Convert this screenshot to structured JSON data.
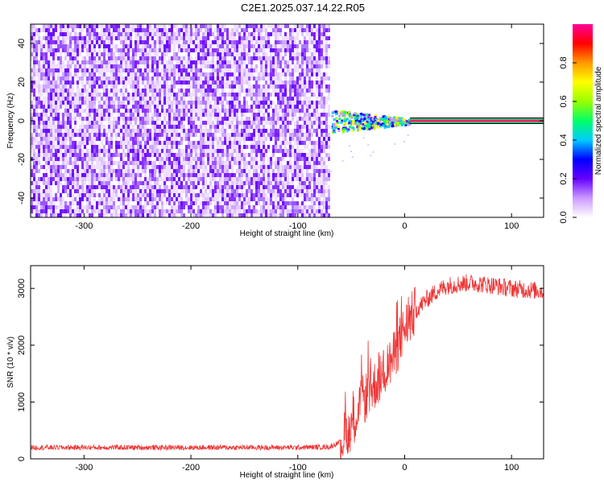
{
  "title": "C2E1.2025.037.14.22.R05",
  "chart_data": [
    {
      "type": "heatmap",
      "xlabel": "Height of straight line (km)",
      "ylabel": "Frequency (Hz)",
      "xlim": [
        -350,
        130
      ],
      "ylim": [
        -50,
        50
      ],
      "xticks": [
        -300,
        -200,
        -100,
        0,
        100
      ],
      "yticks": [
        -40,
        -20,
        0,
        20,
        40
      ],
      "noise_region_x": [
        -350,
        -70
      ],
      "signal_line_x": [
        -70,
        130
      ],
      "signal_frequency": 0,
      "colorbar": {
        "label": "Normalized spectral amplitude",
        "range": [
          0,
          1
        ],
        "ticks": [
          0.0,
          0.2,
          0.4,
          0.6,
          0.8
        ],
        "colors": [
          "#ffffff",
          "#cc99ff",
          "#6600ff",
          "#0000ff",
          "#00ccff",
          "#00ff66",
          "#99ff00",
          "#ffff00",
          "#ff9900",
          "#ff0000",
          "#ff0099"
        ]
      }
    },
    {
      "type": "line",
      "xlabel": "Height of straight line (km)",
      "ylabel": "SNR (10 * v/v)",
      "xlim": [
        -350,
        130
      ],
      "ylim": [
        0,
        3400
      ],
      "xticks": [
        -300,
        -200,
        -100,
        0,
        100
      ],
      "yticks": [
        0,
        1000,
        2000,
        3000
      ],
      "series": [
        {
          "color": "#ee3333",
          "x": [
            -350,
            -300,
            -250,
            -200,
            -150,
            -100,
            -70,
            -60,
            -50,
            -40,
            -30,
            -20,
            -10,
            0,
            10,
            20,
            30,
            40,
            60,
            80,
            100,
            130
          ],
          "values": [
            200,
            200,
            200,
            200,
            200,
            200,
            210,
            300,
            600,
            1000,
            1250,
            1500,
            1800,
            2300,
            2600,
            2800,
            2950,
            3050,
            3100,
            3060,
            3000,
            2950
          ]
        }
      ]
    }
  ]
}
